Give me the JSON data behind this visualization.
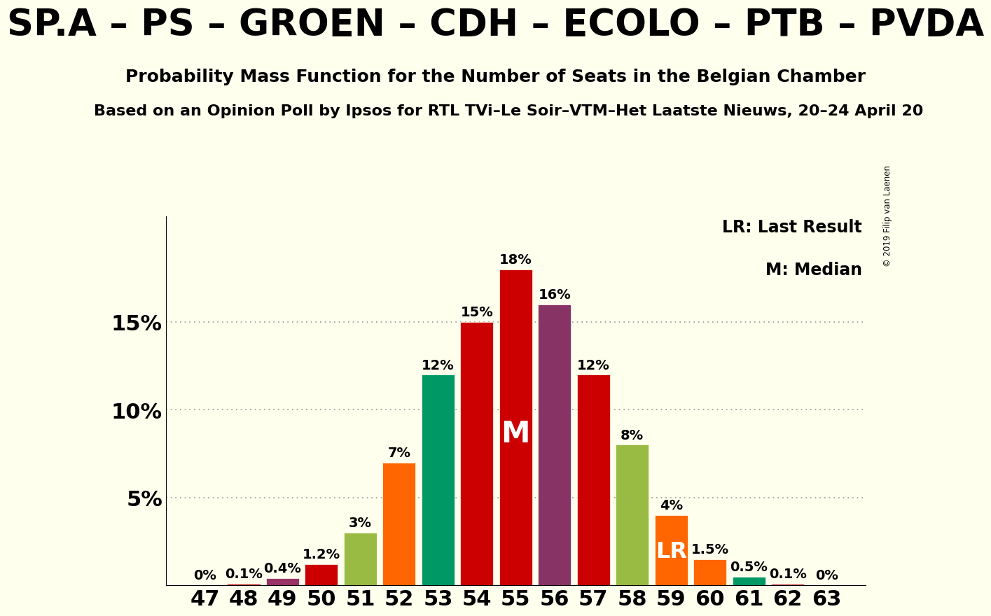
{
  "title": "SP.A – PS – GROEN – CDH – ECOLO – PTB – PVDA",
  "subtitle": "Probability Mass Function for the Number of Seats in the Belgian Chamber",
  "subtitle2": "Based on an Opinion Poll by Ipsos for RTL TVi–Le Soir–VTM–Het Laatste Nieuws, 20–24 April 20",
  "copyright": "© 2019 Filip van Laenen",
  "seats": [
    47,
    48,
    49,
    50,
    51,
    52,
    53,
    54,
    55,
    56,
    57,
    58,
    59,
    60,
    61,
    62,
    63
  ],
  "values": [
    0.0,
    0.1,
    0.4,
    1.2,
    3.0,
    7.0,
    12.0,
    15.0,
    18.0,
    16.0,
    12.0,
    8.0,
    4.0,
    1.5,
    0.5,
    0.1,
    0.0
  ],
  "colors": [
    "#cc0000",
    "#cc0000",
    "#993366",
    "#cc0000",
    "#99bb44",
    "#ff6600",
    "#009966",
    "#cc0000",
    "#cc0000",
    "#883366",
    "#cc0000",
    "#99bb44",
    "#ff6600",
    "#ff6600",
    "#009966",
    "#cc3333",
    "#cc0000"
  ],
  "median_seat": 55,
  "lr_seat": 59,
  "background_color": "#ffffee",
  "ytick_labels": [
    "5%",
    "10%",
    "15%"
  ],
  "ytick_vals": [
    5,
    10,
    15
  ],
  "ylim": [
    0,
    21
  ],
  "xlim_left": 46.0,
  "xlim_right": 64.0,
  "title_fontsize": 38,
  "subtitle_fontsize": 18,
  "subtitle2_fontsize": 16,
  "xtick_fontsize": 22,
  "ytick_fontsize": 22,
  "annotation_fontsize": 14,
  "legend_fontsize": 17,
  "median_label_fontsize": 30,
  "lr_label_fontsize": 23
}
